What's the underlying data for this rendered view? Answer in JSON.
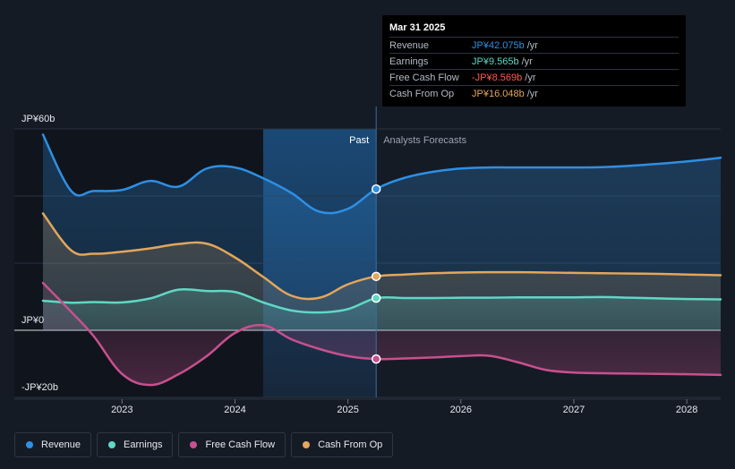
{
  "colors": {
    "revenue": "#2f8fe3",
    "earnings": "#5fd8c4",
    "fcf": "#c9508f",
    "cfo": "#e3a65b",
    "fcf_negative_text": "#ff5a4e"
  },
  "tooltip": {
    "date": "Mar 31 2025",
    "rows": [
      {
        "label": "Revenue",
        "value": "JP¥42.075b",
        "unit": "/yr"
      },
      {
        "label": "Earnings",
        "value": "JP¥9.565b",
        "unit": "/yr"
      },
      {
        "label": "Free Cash Flow",
        "value": "-JP¥8.569b",
        "unit": "/yr"
      },
      {
        "label": "Cash From Op",
        "value": "JP¥16.048b",
        "unit": "/yr"
      }
    ]
  },
  "legend": [
    {
      "label": "Revenue",
      "key": "revenue"
    },
    {
      "label": "Earnings",
      "key": "earnings"
    },
    {
      "label": "Free Cash Flow",
      "key": "fcf"
    },
    {
      "label": "Cash From Op",
      "key": "cfo"
    }
  ],
  "chart_data": {
    "type": "line",
    "title": "",
    "xlabel": "",
    "ylabel": "",
    "y_unit": "JP¥ billions",
    "ylim": [
      -20,
      60
    ],
    "xlim": [
      2022.3,
      2028.3
    ],
    "y_tick_labels": [
      {
        "value": 60,
        "label": "JP¥60b"
      },
      {
        "value": 0,
        "label": "JP¥0"
      },
      {
        "value": -20,
        "label": "-JP¥20b"
      }
    ],
    "x_ticks": [
      {
        "value": 2023,
        "label": "2023"
      },
      {
        "value": 2024,
        "label": "2024"
      },
      {
        "value": 2025,
        "label": "2025"
      },
      {
        "value": 2026,
        "label": "2026"
      },
      {
        "value": 2027,
        "label": "2027"
      },
      {
        "value": 2028,
        "label": "2028"
      }
    ],
    "divider_x": 2025.25,
    "highlight_start": 2024.25,
    "region_labels": {
      "past": "Past",
      "forecast": "Analysts Forecasts"
    },
    "series": [
      {
        "name": "Revenue",
        "key": "revenue",
        "x": [
          2022.3,
          2022.55,
          2022.75,
          2023.0,
          2023.25,
          2023.5,
          2023.75,
          2024.0,
          2024.25,
          2024.5,
          2024.75,
          2025.0,
          2025.25,
          2025.5,
          2025.75,
          2026.0,
          2026.25,
          2026.5,
          2026.75,
          2027.0,
          2027.25,
          2027.5,
          2027.75,
          2028.0,
          2028.3
        ],
        "values": [
          58.3,
          41.5,
          41.5,
          41.8,
          44.5,
          42.8,
          48.2,
          48.5,
          45.3,
          40.9,
          35.3,
          36.2,
          42.075,
          45.4,
          47.2,
          48.2,
          48.5,
          48.5,
          48.5,
          48.5,
          48.6,
          49.0,
          49.6,
          50.3,
          51.4
        ]
      },
      {
        "name": "Earnings",
        "key": "earnings",
        "x": [
          2022.3,
          2022.55,
          2022.75,
          2023.0,
          2023.25,
          2023.5,
          2023.75,
          2024.0,
          2024.25,
          2024.5,
          2024.75,
          2025.0,
          2025.25,
          2025.5,
          2025.75,
          2026.0,
          2026.25,
          2026.5,
          2026.75,
          2027.0,
          2027.25,
          2027.5,
          2027.75,
          2028.0,
          2028.3
        ],
        "values": [
          8.8,
          8.2,
          8.4,
          8.3,
          9.5,
          12.1,
          11.7,
          11.4,
          8.3,
          5.9,
          5.3,
          6.3,
          9.565,
          9.6,
          9.6,
          9.7,
          9.7,
          9.8,
          9.8,
          9.8,
          9.9,
          9.7,
          9.5,
          9.3,
          9.2
        ]
      },
      {
        "name": "Free Cash Flow",
        "key": "fcf",
        "x": [
          2022.3,
          2022.55,
          2022.75,
          2023.0,
          2023.25,
          2023.5,
          2023.75,
          2024.0,
          2024.25,
          2024.5,
          2024.75,
          2025.0,
          2025.25,
          2025.5,
          2025.75,
          2026.0,
          2026.25,
          2026.5,
          2026.75,
          2027.0,
          2027.25,
          2027.5,
          2027.75,
          2028.0,
          2028.3
        ],
        "values": [
          14.1,
          5.5,
          -1.8,
          -13.0,
          -16.3,
          -13.1,
          -7.7,
          -0.8,
          1.5,
          -2.7,
          -5.6,
          -7.7,
          -8.569,
          -8.4,
          -8.1,
          -7.7,
          -7.6,
          -9.5,
          -11.8,
          -12.6,
          -12.8,
          -12.9,
          -13.0,
          -13.1,
          -13.3
        ]
      },
      {
        "name": "Cash From Op",
        "key": "cfo",
        "x": [
          2022.3,
          2022.55,
          2022.75,
          2023.0,
          2023.25,
          2023.5,
          2023.75,
          2024.0,
          2024.25,
          2024.5,
          2024.75,
          2025.0,
          2025.25,
          2025.5,
          2025.75,
          2026.0,
          2026.25,
          2026.5,
          2026.75,
          2027.0,
          2027.25,
          2027.5,
          2027.75,
          2028.0,
          2028.3
        ],
        "values": [
          34.8,
          23.8,
          22.8,
          23.4,
          24.4,
          25.7,
          25.8,
          21.7,
          15.9,
          10.3,
          9.7,
          13.7,
          16.048,
          16.6,
          17.0,
          17.2,
          17.3,
          17.3,
          17.2,
          17.1,
          17.0,
          16.9,
          16.8,
          16.6,
          16.4
        ]
      }
    ],
    "tooltip_markers_x": 2025.25
  }
}
